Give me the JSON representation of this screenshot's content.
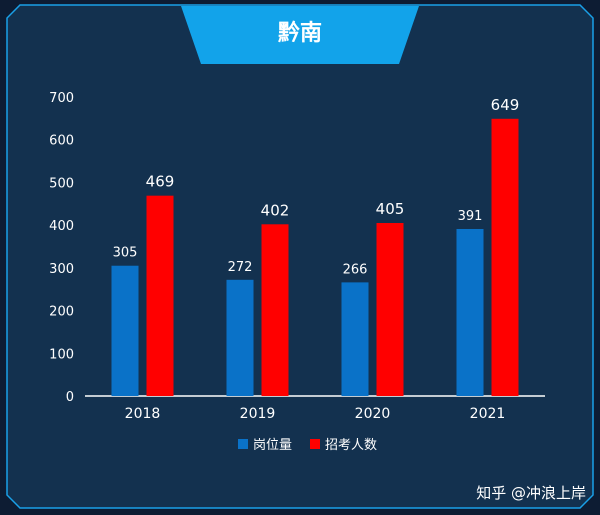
{
  "chart_data": {
    "type": "bar",
    "title": "黔南",
    "categories": [
      "2018",
      "2019",
      "2020",
      "2021"
    ],
    "series": [
      {
        "name": "岗位量",
        "values": [
          305,
          272,
          266,
          391
        ],
        "color": "#0a72c8"
      },
      {
        "name": "招考人数",
        "values": [
          469,
          402,
          405,
          649
        ],
        "color": "#ff0000"
      }
    ],
    "ylim": [
      0,
      700
    ],
    "yticks": [
      0,
      100,
      200,
      300,
      400,
      500,
      600,
      700
    ],
    "xlabel": "",
    "ylabel": "",
    "grid": false,
    "legend_position": "bottom"
  },
  "colors": {
    "background": "#0d1c33",
    "panel": "#13314f",
    "frame_border": "#1aa0e8",
    "title_banner": "#12a3ea",
    "axis_text": "#ffffff"
  },
  "watermark": "知乎 @冲浪上岸"
}
